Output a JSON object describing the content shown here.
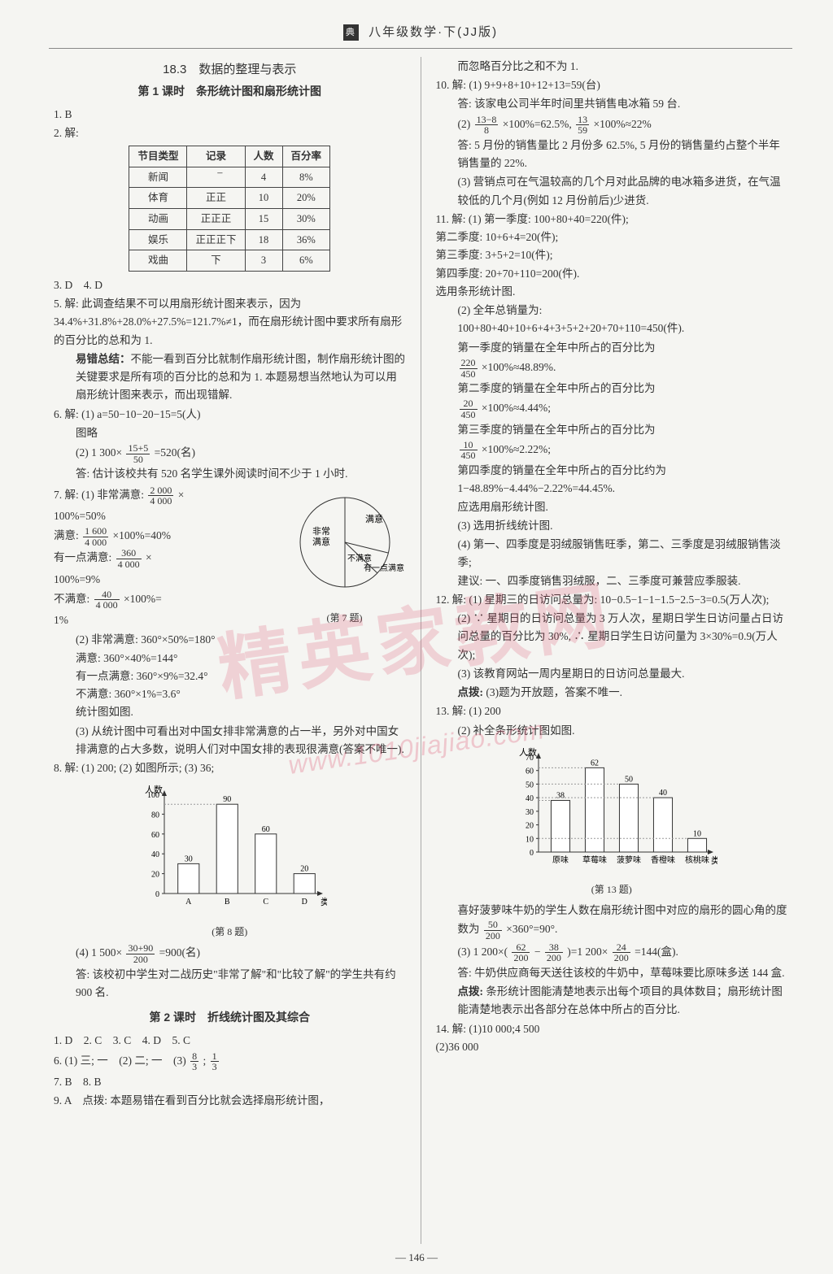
{
  "header": {
    "logo": "典",
    "title": "八年级数学·下(JJ版)"
  },
  "left": {
    "section_title": "18.3　数据的整理与表示",
    "lesson1_title": "第 1 课时　条形统计图和扇形统计图",
    "a1": "1. B",
    "a2_prefix": "2. 解:",
    "table": {
      "headers": [
        "节目类型",
        "记录",
        "人数",
        "百分率"
      ],
      "rows": [
        [
          "新闻",
          "正̅",
          "4",
          "8%"
        ],
        [
          "体育",
          "正正",
          "10",
          "20%"
        ],
        [
          "动画",
          "正正正",
          "15",
          "30%"
        ],
        [
          "娱乐",
          "正正正下",
          "18",
          "36%"
        ],
        [
          "戏曲",
          "下",
          "3",
          "6%"
        ]
      ]
    },
    "a3": "3. D　4. D",
    "a5": "5. 解: 此调查结果不可以用扇形统计图来表示，因为 34.4%+31.8%+28.0%+27.5%=121.7%≠1，而在扇形统计图中要求所有扇形的百分比的总和为 1.",
    "a5_err": "易错总结：不能一看到百分比就制作扇形统计图，制作扇形统计图的关键要求是所有项的百分比的总和为 1. 本题易想当然地认为可以用扇形统计图来表示，而出现错解.",
    "a6_1": "6. 解: (1) a=50−10−20−15=5(人)",
    "a6_1b": "图略",
    "a6_2a": "(2) 1 300×",
    "a6_2_frac": {
      "n": "15+5",
      "d": "50"
    },
    "a6_2b": "=520(名)",
    "a6_ans": "答: 估计该校共有 520 名学生课外阅读时间不少于 1 小时.",
    "a7_1a": "7. 解: (1) 非常满意: ",
    "a7_1_f1": {
      "n": "2 000",
      "d": "4 000"
    },
    "a7_1b": "×",
    "a7_1c": "100%=50%",
    "a7_2a": "满意: ",
    "a7_2_f": {
      "n": "1 600",
      "d": "4 000"
    },
    "a7_2b": "×100%=40%",
    "a7_3a": "有一点满意: ",
    "a7_3_f": {
      "n": "360",
      "d": "4 000"
    },
    "a7_3b": "×",
    "a7_3c": "100%=9%",
    "a7_4a": "不满意: ",
    "a7_4_f": {
      "n": "40",
      "d": "4 000"
    },
    "a7_4b": "×100%=",
    "a7_4c": "1%",
    "pie": {
      "labels": [
        "满意",
        "非常满意",
        "有一点满意",
        "不满意"
      ],
      "colors": [
        "#ffffff",
        "#ffffff",
        "#ffffff",
        "#ffffff"
      ],
      "stroke": "#333333",
      "angles": [
        144,
        180,
        32.4,
        3.6
      ],
      "caption": "(第 7 题)"
    },
    "a7_2block": "(2) 非常满意: 360°×50%=180°\n满意: 360°×40%=144°\n有一点满意: 360°×9%=32.4°\n不满意: 360°×1%=3.6°\n统计图如图.",
    "a7_3block": "(3) 从统计图中可看出对中国女排非常满意的占一半，另外对中国女排满意的占大多数，说明人们对中国女排的表现很满意(答案不唯一).",
    "a8_1": "8. 解: (1) 200; (2) 如图所示; (3) 36;",
    "bar8": {
      "type": "bar",
      "categories": [
        "A",
        "B",
        "C",
        "D"
      ],
      "values": [
        30,
        90,
        60,
        20
      ],
      "highlight_index": 1,
      "ylabel": "人数",
      "xlabel": "类型",
      "ylim": [
        0,
        100
      ],
      "ytick_step": 20,
      "grid_color": "#bbbbbb",
      "bar_color": "#ffffff",
      "bar_stroke": "#333333",
      "caption": "(第 8 题)"
    },
    "a8_4a": "(4) 1 500×",
    "a8_4_f": {
      "n": "30+90",
      "d": "200"
    },
    "a8_4b": "=900(名)",
    "a8_ans": "答: 该校初中学生对二战历史\"非常了解\"和\"比较了解\"的学生共有约 900 名.",
    "lesson2_title": "第 2 课时　折线统计图及其综合",
    "l2_a1": "1. D　2. C　3. C　4. D　5. C",
    "l2_a6a": "6. (1) 三; 一　(2) 二; 一　(3) ",
    "l2_a6_f1": {
      "n": "8",
      "d": "3"
    },
    "l2_a6b": "; ",
    "l2_a6_f2": {
      "n": "1",
      "d": "3"
    },
    "l2_a7": "7. B　8. B",
    "l2_a9": "9. A　点拨: 本题易错在看到百分比就会选择扇形统计图，"
  },
  "right": {
    "cont9": "而忽略百分比之和不为 1.",
    "a10_1": "10. 解: (1) 9+9+8+10+12+13=59(台)",
    "a10_1ans": "答: 该家电公司半年时间里共销售电冰箱 59 台.",
    "a10_2a": "(2) ",
    "a10_2_f1": {
      "n": "13−8",
      "d": "8"
    },
    "a10_2b": "×100%=62.5%, ",
    "a10_2_f2": {
      "n": "13",
      "d": "59"
    },
    "a10_2c": "×100%≈22%",
    "a10_2ans": "答: 5 月份的销售量比 2 月份多 62.5%, 5 月份的销售量约占整个半年销售量的 22%.",
    "a10_3": "(3) 营销点可在气温较高的几个月对此品牌的电冰箱多进货，在气温较低的几个月(例如 12 月份前后)少进货.",
    "a11_1": "11. 解: (1) 第一季度: 100+80+40=220(件);\n第二季度: 10+6+4=20(件);\n第三季度: 3+5+2=10(件);\n第四季度: 20+70+110=200(件).\n选用条形统计图.",
    "a11_2": "(2) 全年总销量为:\n100+80+40+10+6+4+3+5+2+20+70+110=450(件).",
    "a11_q1": "第一季度的销量在全年中所占的百分比为",
    "a11_q1f": {
      "n": "220",
      "d": "450"
    },
    "a11_q1b": "×100%≈48.89%.",
    "a11_q2": "第二季度的销量在全年中所占的百分比为",
    "a11_q2f": {
      "n": "20",
      "d": "450"
    },
    "a11_q2b": "×100%≈4.44%;",
    "a11_q3": "第三季度的销量在全年中所占的百分比为",
    "a11_q3f": {
      "n": "10",
      "d": "450"
    },
    "a11_q3b": "×100%≈2.22%;",
    "a11_q4": "第四季度的销量在全年中所占的百分比约为\n1−48.89%−4.44%−2.22%=44.45%.\n应选用扇形统计图.",
    "a11_3": "(3) 选用折线统计图.",
    "a11_4": "(4) 第一、四季度是羽绒服销售旺季，第二、三季度是羽绒服销售淡季;\n建议: 一、四季度销售羽绒服，二、三季度可兼营应季服装.",
    "a12_1": "12. 解: (1) 星期三的日访问总量为: 10−0.5−1−1−1.5−2.5−3=0.5(万人次);",
    "a12_2": "(2) ∵ 星期日的日访问总量为 3 万人次，星期日学生日访问量占日访问总量的百分比为 30%, ∴ 星期日学生日访问量为 3×30%=0.9(万人次);",
    "a12_3": "(3) 该教育网站一周内星期日的日访问总量最大.",
    "a12_db": "点拨: (3)题为开放题，答案不唯一.",
    "a13_1": "13. 解: (1) 200",
    "a13_2": "(2) 补全条形统计图如图.",
    "bar13": {
      "type": "bar",
      "categories": [
        "原味",
        "草莓味",
        "菠萝味",
        "香橙味",
        "核桃味"
      ],
      "values": [
        38,
        62,
        50,
        40,
        10
      ],
      "ylabel": "人数",
      "xlabel": "类别",
      "ylim": [
        0,
        70
      ],
      "ytick_step": 10,
      "grid_color": "#bbbbbb",
      "bar_color": "#ffffff",
      "bar_stroke": "#333333",
      "caption": "(第 13 题)"
    },
    "a13_angle1": "喜好菠萝味牛奶的学生人数在扇形统计图中对应的扇形的圆心角的度数为 ",
    "a13_anglef": {
      "n": "50",
      "d": "200"
    },
    "a13_angle2": "×360°=90°.",
    "a13_3a": "(3) 1 200×(",
    "a13_3f1": {
      "n": "62",
      "d": "200"
    },
    "a13_3b": "−",
    "a13_3f2": {
      "n": "38",
      "d": "200"
    },
    "a13_3c": ")=1 200×",
    "a13_3f3": {
      "n": "24",
      "d": "200"
    },
    "a13_3d": "=144(盒).",
    "a13_ans": "答: 牛奶供应商每天送往该校的牛奶中，草莓味要比原味多送 144 盒.",
    "a13_db": "点拨: 条形统计图能清楚地表示出每个项目的具体数目；扇形统计图能清楚地表示出各部分在总体中所占的百分比.",
    "a14": "14. 解: (1)10 000;4 500\n(2)36 000"
  },
  "watermark": "精英家教网",
  "watermark_url": "www.1010jiajiao.com",
  "page_num": "— 146 —"
}
